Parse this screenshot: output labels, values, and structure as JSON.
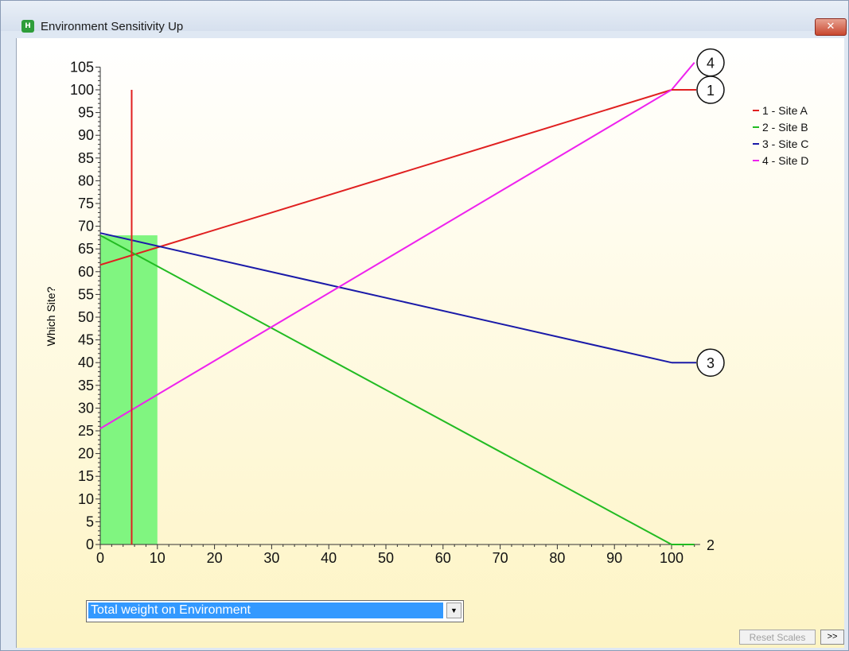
{
  "window": {
    "title": "Environment Sensitivity Up",
    "close_glyph": "✕",
    "icon": "app-logo-icon"
  },
  "chart_data": {
    "type": "line",
    "title": "",
    "xlabel": "",
    "ylabel": "Which Site?",
    "xlim": [
      0,
      105
    ],
    "ylim": [
      0,
      105
    ],
    "x_ticks": [
      0,
      10,
      20,
      30,
      40,
      50,
      60,
      70,
      80,
      90,
      100
    ],
    "y_ticks": [
      0,
      5,
      10,
      15,
      20,
      25,
      30,
      35,
      40,
      45,
      50,
      55,
      60,
      65,
      70,
      75,
      80,
      85,
      90,
      95,
      100,
      105
    ],
    "grid": false,
    "legend_position": "top-right",
    "series": [
      {
        "name": "1 - Site A",
        "label": "1",
        "color": "#e02020",
        "x": [
          0,
          30,
          100
        ],
        "y": [
          61.5,
          73,
          100
        ],
        "end_y": 100
      },
      {
        "name": "2 - Site B",
        "label": "2",
        "color": "#22bb22",
        "x": [
          0,
          100
        ],
        "y": [
          68,
          0
        ],
        "end_y": 0
      },
      {
        "name": "3 - Site C",
        "label": "3",
        "color": "#1a1aa8",
        "x": [
          0,
          100
        ],
        "y": [
          68.5,
          40
        ],
        "end_y": 40
      },
      {
        "name": "4 - Site D",
        "label": "4",
        "color": "#ee22ee",
        "x": [
          0,
          100,
          104
        ],
        "y": [
          25.5,
          100,
          106
        ],
        "end_y": 106
      }
    ],
    "current_weight": 5.5,
    "highlight_range": [
      0,
      10
    ],
    "highlight_color": "#80f580"
  },
  "controls": {
    "dropdown_value": "Total weight on Environment",
    "dropdown_arrow": "▼",
    "reset_label": "Reset Scales",
    "more_label": ">>"
  }
}
